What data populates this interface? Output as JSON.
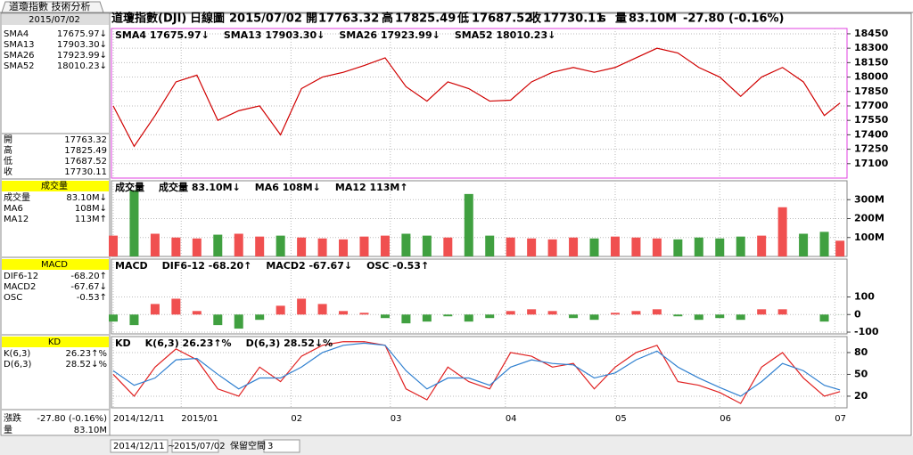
{
  "window": {
    "tab": "道瓊指數 技術分析"
  },
  "header": [
    {
      "text": "道瓊指數(DJI)",
      "color": "#000"
    },
    {
      "text": "日線圖",
      "color": "#000"
    },
    {
      "text": "2015/07/02",
      "color": "#000"
    },
    {
      "text": "開",
      "color": "#000"
    },
    {
      "text": "17763.32",
      "color": "#d00000"
    },
    {
      "text": "高",
      "color": "#000"
    },
    {
      "text": "17825.49",
      "color": "#d00000"
    },
    {
      "text": "低",
      "color": "#000"
    },
    {
      "text": "17687.52",
      "color": "#008000"
    },
    {
      "text": "收",
      "color": "#000"
    },
    {
      "text": "17730.11",
      "color": "#008000"
    },
    {
      "text": "s",
      "color": "#000"
    },
    {
      "text": "量",
      "color": "#000"
    },
    {
      "text": "83.10M",
      "color": "#000"
    },
    {
      "text": "-27.80 (-0.16%)",
      "color": "#000"
    }
  ],
  "side_panel": {
    "date": "2015/07/02",
    "sma": [
      {
        "label": "SMA4",
        "value": "17675.97↓",
        "color": "#333"
      },
      {
        "label": "SMA13",
        "value": "17903.30↓",
        "color": "#20b0c0"
      },
      {
        "label": "SMA26",
        "value": "17923.99↓",
        "color": "#e020a0"
      },
      {
        "label": "SMA52",
        "value": "18010.23↓",
        "color": "#e08040"
      }
    ],
    "ohlc": [
      {
        "label": "開",
        "value": "17763.32"
      },
      {
        "label": "高",
        "value": "17825.49"
      },
      {
        "label": "低",
        "value": "17687.52"
      },
      {
        "label": "收",
        "value": "17730.11"
      }
    ],
    "sections": [
      {
        "title": "成交量",
        "rows": [
          {
            "label": "成交量",
            "value": "83.10M↓",
            "color": "#000"
          },
          {
            "label": "MA6",
            "value": "108M↓",
            "color": "#d00000"
          },
          {
            "label": "MA12",
            "value": "113M↑",
            "color": "#1060c0"
          }
        ]
      },
      {
        "title": "MACD",
        "rows": [
          {
            "label": "DIF6-12",
            "value": "-68.20↑",
            "color": "#d00000"
          },
          {
            "label": "MACD2",
            "value": "-67.67↓",
            "color": "#1060c0"
          },
          {
            "label": "OSC",
            "value": "-0.53↑",
            "color": "#1010c0"
          }
        ]
      },
      {
        "title": "KD",
        "rows": [
          {
            "label": "K(6,3)",
            "value": "26.23↑%",
            "color": "#d00000"
          },
          {
            "label": "D(6,3)",
            "value": "28.52↓%",
            "color": "#1060c0"
          }
        ]
      }
    ],
    "change": {
      "label": "漲跌",
      "value": "-27.80 (-0.16%)"
    },
    "volume": {
      "label": "量",
      "value": "83.10M"
    }
  },
  "chart_data": [
    {
      "type": "line",
      "xlim": [
        0,
        140
      ],
      "ylim": [
        16950,
        18505
      ],
      "yticks": [
        17100,
        17250,
        17400,
        17550,
        17700,
        17850,
        18000,
        18150,
        18300,
        18450
      ],
      "annotations": [
        {
          "text": "SMA4 17675.97↓",
          "color": "#a00000"
        },
        {
          "text": "SMA13 17903.30↓",
          "color": "#20b0c0"
        },
        {
          "text": "SMA26 17923.99↓",
          "color": "#e020a0"
        },
        {
          "text": "SMA52 18010.23↓",
          "color": "#e08040"
        }
      ],
      "x": [
        0,
        4,
        8,
        12,
        16,
        20,
        24,
        28,
        32,
        36,
        40,
        44,
        48,
        52,
        56,
        60,
        64,
        68,
        72,
        76,
        80,
        84,
        88,
        92,
        96,
        100,
        104,
        108,
        112,
        116,
        120,
        124,
        128,
        132,
        136,
        139
      ],
      "series": [
        {
          "name": "收",
          "color": "#d00000",
          "values": [
            17700,
            17280,
            17600,
            17950,
            18020,
            17550,
            17650,
            17700,
            17400,
            17880,
            18000,
            18050,
            18120,
            18200,
            17900,
            17750,
            17950,
            17880,
            17750,
            17760,
            17950,
            18050,
            18100,
            18050,
            18100,
            18200,
            18300,
            18250,
            18100,
            18000,
            17800,
            18000,
            18100,
            17950,
            17600,
            17730.11
          ]
        }
      ]
    },
    {
      "type": "bar",
      "xlim": [
        0,
        140
      ],
      "ylim": [
        0,
        400
      ],
      "yticks": [
        {
          "value": 100,
          "label": "100M"
        },
        {
          "value": 200,
          "label": "200M"
        },
        {
          "value": 300,
          "label": "300M"
        }
      ],
      "annotations": [
        {
          "text": "成交量",
          "color": "#000"
        },
        {
          "text": "成交量 83.10M↓",
          "color": "#000"
        },
        {
          "text": "MA6 108M↓",
          "color": "#d00000"
        },
        {
          "text": "MA12 113M↑",
          "color": "#1060c0"
        }
      ],
      "up_color": "#f05050",
      "down_color": "#40a040",
      "x": [
        0,
        4,
        8,
        12,
        16,
        20,
        24,
        28,
        32,
        36,
        40,
        44,
        48,
        52,
        56,
        60,
        64,
        68,
        72,
        76,
        80,
        84,
        88,
        92,
        96,
        100,
        104,
        108,
        112,
        116,
        120,
        124,
        128,
        132,
        136,
        139
      ],
      "values": [
        110,
        350,
        120,
        100,
        95,
        115,
        120,
        105,
        110,
        100,
        95,
        90,
        105,
        110,
        120,
        110,
        100,
        330,
        110,
        100,
        95,
        90,
        100,
        95,
        105,
        100,
        95,
        90,
        100,
        95,
        105,
        110,
        260,
        120,
        130,
        83.1
      ]
    },
    {
      "type": "bar",
      "xlim": [
        0,
        140
      ],
      "ylim": [
        -110,
        315
      ],
      "yticks": [
        -100,
        0,
        100
      ],
      "annotations": [
        {
          "text": "MACD",
          "color": "#000"
        },
        {
          "text": "DIF6-12 -68.20↑",
          "color": "#d00000"
        },
        {
          "text": "MACD2 -67.67↓",
          "color": "#1060c0"
        },
        {
          "text": "OSC -0.53↑",
          "color": "#1010c0"
        }
      ],
      "up_color": "#f05050",
      "down_color": "#40a040",
      "x": [
        0,
        4,
        8,
        12,
        16,
        20,
        24,
        28,
        32,
        36,
        40,
        44,
        48,
        52,
        56,
        60,
        64,
        68,
        72,
        76,
        80,
        84,
        88,
        92,
        96,
        100,
        104,
        108,
        112,
        116,
        120,
        124,
        128,
        132,
        136,
        139
      ],
      "values": [
        -40,
        -60,
        60,
        90,
        20,
        -60,
        -80,
        -30,
        50,
        90,
        60,
        20,
        10,
        -20,
        -50,
        -40,
        -10,
        -40,
        -20,
        20,
        30,
        20,
        -20,
        -30,
        10,
        20,
        30,
        -10,
        -30,
        -20,
        -30,
        30,
        30,
        0,
        -40,
        -0.53
      ]
    },
    {
      "type": "line",
      "xlim": [
        0,
        140
      ],
      "ylim": [
        4,
        102
      ],
      "yticks": [
        20,
        50,
        80
      ],
      "annotations": [
        {
          "text": "KD",
          "color": "#000"
        },
        {
          "text": "K(6,3) 26.23↑%",
          "color": "#d00000"
        },
        {
          "text": "D(6,3) 28.52↓%",
          "color": "#1060c0"
        }
      ],
      "xticks": [
        {
          "value": 0,
          "label": "2014/12/11"
        },
        {
          "value": 13,
          "label": "2015/01"
        },
        {
          "value": 34,
          "label": "02"
        },
        {
          "value": 53,
          "label": "03"
        },
        {
          "value": 75,
          "label": "04"
        },
        {
          "value": 96,
          "label": "05"
        },
        {
          "value": 116,
          "label": "06"
        },
        {
          "value": 138,
          "label": "07"
        }
      ],
      "x": [
        0,
        4,
        8,
        12,
        16,
        20,
        24,
        28,
        32,
        36,
        40,
        44,
        48,
        52,
        56,
        60,
        64,
        68,
        72,
        76,
        80,
        84,
        88,
        92,
        96,
        100,
        104,
        108,
        112,
        116,
        120,
        124,
        128,
        132,
        136,
        139
      ],
      "series": [
        {
          "name": "K(6,3)",
          "color": "#e02020",
          "values": [
            50,
            20,
            60,
            85,
            70,
            30,
            20,
            60,
            40,
            75,
            90,
            95,
            95,
            90,
            30,
            15,
            60,
            40,
            30,
            80,
            75,
            60,
            65,
            30,
            60,
            80,
            90,
            40,
            35,
            25,
            10,
            60,
            80,
            45,
            20,
            26.23
          ]
        },
        {
          "name": "D(6,3)",
          "color": "#3080d0",
          "values": [
            55,
            35,
            45,
            70,
            72,
            50,
            30,
            45,
            45,
            60,
            80,
            90,
            93,
            90,
            55,
            30,
            45,
            45,
            35,
            60,
            70,
            65,
            63,
            45,
            52,
            70,
            82,
            60,
            45,
            32,
            20,
            40,
            65,
            55,
            35,
            28.52
          ]
        }
      ]
    }
  ],
  "toolbar": {
    "from": "2014/12/11",
    "sep": "~",
    "to": "2015/07/02",
    "reserve": "保留空間",
    "count": "3"
  }
}
